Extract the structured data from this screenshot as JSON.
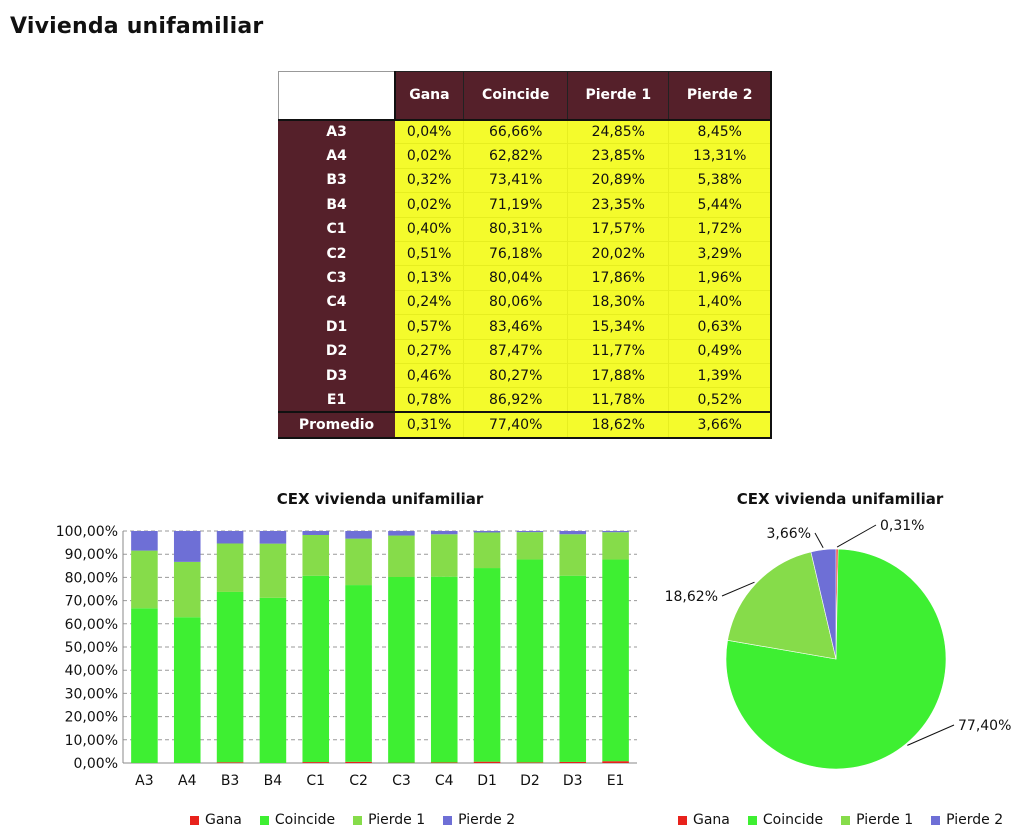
{
  "page": {
    "title": "Vivienda unifamiliar"
  },
  "table": {
    "headers": [
      "Gana",
      "Coincide",
      "Pierde 1",
      "Pierde 2"
    ],
    "rows": [
      {
        "label": "A3",
        "values": [
          "0,04%",
          "66,66%",
          "24,85%",
          "8,45%"
        ]
      },
      {
        "label": "A4",
        "values": [
          "0,02%",
          "62,82%",
          "23,85%",
          "13,31%"
        ]
      },
      {
        "label": "B3",
        "values": [
          "0,32%",
          "73,41%",
          "20,89%",
          "5,38%"
        ]
      },
      {
        "label": "B4",
        "values": [
          "0,02%",
          "71,19%",
          "23,35%",
          "5,44%"
        ]
      },
      {
        "label": "C1",
        "values": [
          "0,40%",
          "80,31%",
          "17,57%",
          "1,72%"
        ]
      },
      {
        "label": "C2",
        "values": [
          "0,51%",
          "76,18%",
          "20,02%",
          "3,29%"
        ]
      },
      {
        "label": "C3",
        "values": [
          "0,13%",
          "80,04%",
          "17,86%",
          "1,96%"
        ]
      },
      {
        "label": "C4",
        "values": [
          "0,24%",
          "80,06%",
          "18,30%",
          "1,40%"
        ]
      },
      {
        "label": "D1",
        "values": [
          "0,57%",
          "83,46%",
          "15,34%",
          "0,63%"
        ]
      },
      {
        "label": "D2",
        "values": [
          "0,27%",
          "87,47%",
          "11,77%",
          "0,49%"
        ]
      },
      {
        "label": "D3",
        "values": [
          "0,46%",
          "80,27%",
          "17,88%",
          "1,39%"
        ]
      },
      {
        "label": "E1",
        "values": [
          "0,78%",
          "86,92%",
          "11,78%",
          "0,52%"
        ]
      }
    ],
    "footer": {
      "label": "Promedio",
      "values": [
        "0,31%",
        "77,40%",
        "18,62%",
        "3,66%"
      ]
    }
  },
  "colors": {
    "gana": "#e8221c",
    "coincide": "#3eef32",
    "pierde1": "#86dc4a",
    "pierde2": "#6e6fd6"
  },
  "chart_data": [
    {
      "type": "bar",
      "stacked": true,
      "title": "CEX vivienda unifamiliar",
      "categories": [
        "A3",
        "A4",
        "B3",
        "B4",
        "C1",
        "C2",
        "C3",
        "C4",
        "D1",
        "D2",
        "D3",
        "E1"
      ],
      "series": [
        {
          "name": "Gana",
          "values": [
            0.04,
            0.02,
            0.32,
            0.02,
            0.4,
            0.51,
            0.13,
            0.24,
            0.57,
            0.27,
            0.46,
            0.78
          ]
        },
        {
          "name": "Coincide",
          "values": [
            66.66,
            62.82,
            73.41,
            71.19,
            80.31,
            76.18,
            80.04,
            80.06,
            83.46,
            87.47,
            80.27,
            86.92
          ]
        },
        {
          "name": "Pierde 1",
          "values": [
            24.85,
            23.85,
            20.89,
            23.35,
            17.57,
            20.02,
            17.86,
            18.3,
            15.34,
            11.77,
            17.88,
            11.78
          ]
        },
        {
          "name": "Pierde 2",
          "values": [
            8.45,
            13.31,
            5.38,
            5.44,
            1.72,
            3.29,
            1.96,
            1.4,
            0.63,
            0.49,
            1.39,
            0.52
          ]
        }
      ],
      "ylim": [
        0,
        100
      ],
      "yticks": [
        "0,00%",
        "10,00%",
        "20,00%",
        "30,00%",
        "40,00%",
        "50,00%",
        "60,00%",
        "70,00%",
        "80,00%",
        "90,00%",
        "100,00%"
      ],
      "grid": true,
      "legend": "bottom"
    },
    {
      "type": "pie",
      "title": "CEX vivienda unifamiliar",
      "labels": [
        "Gana",
        "Coincide",
        "Pierde 1",
        "Pierde 2"
      ],
      "values": [
        0.31,
        77.4,
        18.62,
        3.66
      ],
      "data_labels": [
        "0,31%",
        "77,40%",
        "18,62%",
        "3,66%"
      ],
      "legend": "bottom"
    }
  ]
}
